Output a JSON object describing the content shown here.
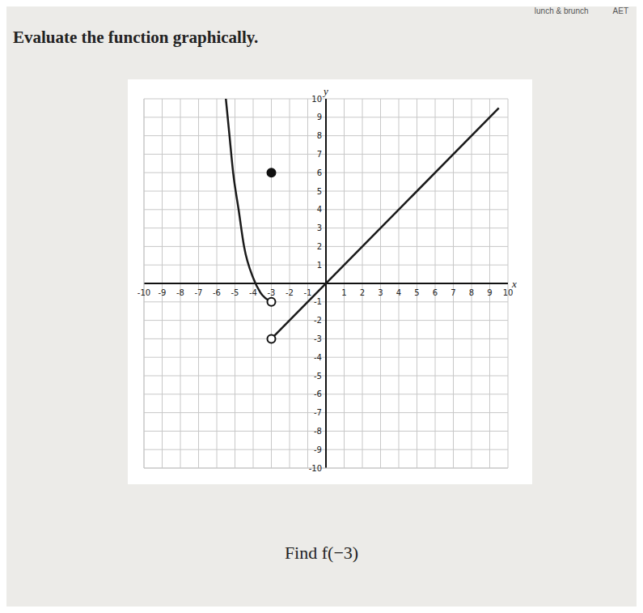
{
  "title": "Evaluate the function graphically.",
  "question": "Find f(−3)",
  "browser_tabs": [
    "lunch & brunch",
    "AET"
  ],
  "chart_data": {
    "type": "line",
    "x_label": "x",
    "y_label": "y",
    "xlim": [
      -10,
      10
    ],
    "ylim": [
      -10,
      10
    ],
    "xticks": [
      -10,
      -9,
      -8,
      -7,
      -6,
      -5,
      -4,
      -3,
      -2,
      -1,
      1,
      2,
      3,
      4,
      5,
      6,
      7,
      8,
      9,
      10
    ],
    "yticks": [
      -10,
      -9,
      -8,
      -7,
      -6,
      -5,
      -4,
      -3,
      -2,
      -1,
      1,
      2,
      3,
      4,
      5,
      6,
      7,
      8,
      9,
      10
    ],
    "grid": true,
    "series": [
      {
        "color": "#1a1a1a",
        "x": [
          -5.5,
          -5.3,
          -5.1,
          -4.8,
          -4.5,
          -4,
          -3.6,
          -3
        ],
        "values": [
          10,
          8,
          6,
          4,
          2,
          0.3,
          -0.5,
          -1
        ]
      },
      {
        "color": "#1a1a1a",
        "x": [
          -3,
          9.5
        ],
        "values": [
          -3,
          9.5
        ]
      }
    ],
    "points": [
      {
        "x": -3,
        "y": 6,
        "marker": "filled"
      },
      {
        "x": -3,
        "y": -1,
        "marker": "open"
      },
      {
        "x": -3,
        "y": -3,
        "marker": "open"
      }
    ]
  }
}
